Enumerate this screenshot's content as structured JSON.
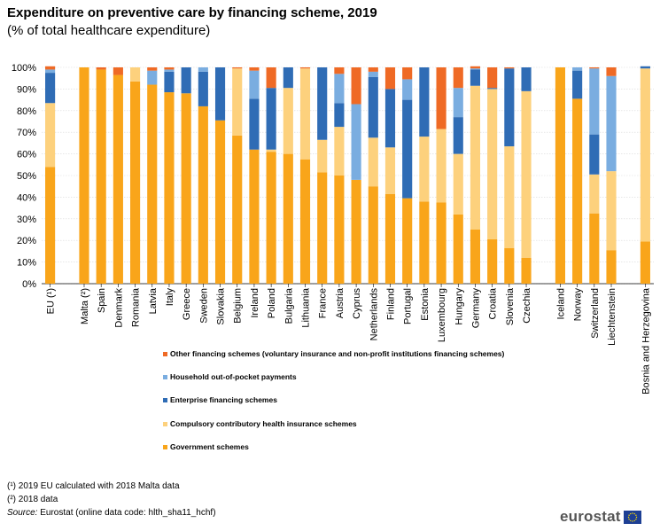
{
  "page": {
    "title": "Expenditure on preventive care by financing scheme, 2019",
    "subtitle": "(% of total healthcare expenditure)"
  },
  "colors": {
    "government": "#F9A51A",
    "compulsory": "#FDD17D",
    "enterprise": "#2F6CB5",
    "household": "#7AADE0",
    "other": "#EF6A25"
  },
  "chart_data": {
    "type": "bar",
    "stacked": true,
    "title": "Expenditure on preventive care by financing scheme, 2019",
    "ylabel": "% of total healthcare expenditure",
    "ylim": [
      0,
      100
    ],
    "yticks": [
      "0%",
      "10%",
      "20%",
      "30%",
      "40%",
      "50%",
      "60%",
      "70%",
      "80%",
      "90%",
      "100%"
    ],
    "categories": [
      "EU (¹)",
      "Malta (²)",
      "Spain",
      "Denmark",
      "Romania",
      "Latvia",
      "Italy",
      "Greece",
      "Sweden",
      "Slovakia",
      "Belgium",
      "Ireland",
      "Poland",
      "Bulgaria",
      "Lithuania",
      "France",
      "Austria",
      "Cyprus",
      "Netherlands",
      "Finland",
      "Portugal",
      "Estonia",
      "Luxembourg",
      "Hungary",
      "Germany",
      "Croatia",
      "Slovenia",
      "Czechia",
      "Iceland",
      "Norway",
      "Switzerland",
      "Liechtenstein",
      "Bosnia and Herzegovina"
    ],
    "series": [
      {
        "name": "Government schemes",
        "key": "government",
        "values": [
          54,
          100,
          99,
          96.5,
          93.5,
          92,
          88.5,
          88,
          82,
          75.5,
          68.5,
          62,
          61,
          60,
          57.5,
          51.5,
          50,
          48,
          45,
          41.5,
          39.5,
          38,
          37.5,
          32,
          25,
          20.5,
          16.5,
          12,
          100,
          85.5,
          32.5,
          15.5,
          19.5
        ]
      },
      {
        "name": "Compulsory contributory health insurance schemes",
        "key": "compulsory",
        "values": [
          29.5,
          0,
          0,
          0,
          6.5,
          0,
          0,
          0,
          0,
          0,
          31,
          0,
          1,
          30.5,
          42,
          15,
          22.5,
          0,
          22.5,
          21.5,
          0,
          30,
          34,
          28,
          66.5,
          69.5,
          47,
          77,
          0,
          0,
          18,
          36.5,
          80
        ]
      },
      {
        "name": "Enterprise financing schemes",
        "key": "enterprise",
        "values": [
          14,
          0,
          0,
          0,
          0,
          0,
          9.5,
          12,
          16,
          24.5,
          0,
          23.5,
          28.5,
          9.5,
          0,
          33.5,
          11,
          0,
          28,
          27,
          45.5,
          32,
          0,
          17,
          7.5,
          0.5,
          36,
          11,
          0,
          13,
          18.5,
          0,
          1
        ]
      },
      {
        "name": "Household out-of-pocket payments",
        "key": "household",
        "values": [
          1.5,
          0,
          0,
          0,
          0,
          6.5,
          1,
          0,
          2,
          0,
          0,
          13,
          0,
          0,
          0,
          0,
          13.5,
          35,
          2.5,
          0,
          9.5,
          0,
          0,
          13.5,
          0.5,
          0,
          0,
          0,
          0,
          1.5,
          30.5,
          44,
          0
        ]
      },
      {
        "name": "Other financing schemes (voluntary insurance and non-profit institutions financing schemes)",
        "key": "other",
        "values": [
          1.5,
          0,
          1,
          3.5,
          0,
          1.5,
          1,
          0,
          0,
          0,
          0.5,
          1.5,
          9.5,
          0,
          0.5,
          0,
          3,
          17,
          2,
          10,
          5.5,
          0,
          28.5,
          9.5,
          1,
          9.5,
          0.5,
          0,
          0,
          0,
          0.5,
          4,
          0
        ]
      }
    ],
    "legend_placement": "bottom",
    "legend": [
      {
        "key": "other",
        "label": "Other financing schemes (voluntary insurance and non-profit institutions financing schemes)"
      },
      {
        "key": "household",
        "label": "Household out-of-pocket payments"
      },
      {
        "key": "enterprise",
        "label": "Enterprise financing schemes"
      },
      {
        "key": "compulsory",
        "label": "Compulsory contributory health insurance schemes"
      },
      {
        "key": "government",
        "label": "Government schemes"
      }
    ]
  },
  "notes": {
    "note1": "(¹) 2019 EU calculated with 2018 Malta data",
    "note2": "(²) 2018 data",
    "source_label": "Source:",
    "source_text": " Eurostat (online data code: hlth_sha11_hchf)"
  },
  "logo": {
    "text": "eurostat"
  }
}
